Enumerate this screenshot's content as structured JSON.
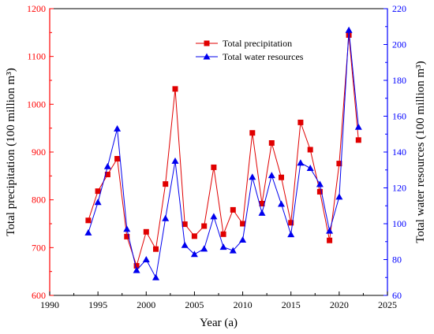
{
  "chart_data": {
    "type": "line",
    "xlabel": "Year (a)",
    "ylabel_left": "Total precipitation (100 million m³)",
    "ylabel_right": "Total water resources (100 million m³)",
    "xlim": [
      1990,
      2025
    ],
    "ylim_left": [
      600,
      1200
    ],
    "ylim_right": [
      60,
      220
    ],
    "x_ticks": [
      "1990",
      "1995",
      "2000",
      "2005",
      "2010",
      "2015",
      "2020",
      "2025"
    ],
    "y_left_ticks": [
      "600",
      "700",
      "800",
      "900",
      "1000",
      "1100",
      "1200"
    ],
    "y_right_ticks": [
      "60",
      "80",
      "100",
      "120",
      "140",
      "160",
      "180",
      "200",
      "220"
    ],
    "legend_position": "top-center",
    "colors": {
      "left_axis": "#ff0000",
      "right_axis": "#0000ff",
      "frame": "#000000"
    },
    "series": [
      {
        "name": "Total precipitation",
        "axis": "left",
        "marker": "square",
        "color": "#e00000",
        "x": [
          1994,
          1995,
          1996,
          1997,
          1998,
          1999,
          2000,
          2001,
          2002,
          2003,
          2004,
          2005,
          2006,
          2007,
          2008,
          2009,
          2010,
          2011,
          2012,
          2013,
          2014,
          2015,
          2016,
          2017,
          2018,
          2019,
          2020,
          2021,
          2022
        ],
        "y": [
          757,
          818,
          853,
          886,
          723,
          662,
          733,
          697,
          833,
          1032,
          749,
          724,
          745,
          868,
          728,
          779,
          750,
          940,
          792,
          919,
          847,
          752,
          962,
          905,
          817,
          715,
          876,
          1145,
          925
        ]
      },
      {
        "name": "Total water resources",
        "axis": "right",
        "marker": "triangle",
        "color": "#0000ee",
        "x": [
          1994,
          1995,
          1996,
          1997,
          1998,
          1999,
          2000,
          2001,
          2002,
          2003,
          2004,
          2005,
          2006,
          2007,
          2008,
          2009,
          2010,
          2011,
          2012,
          2013,
          2014,
          2015,
          2016,
          2017,
          2018,
          2019,
          2020,
          2021,
          2022
        ],
        "y": [
          95,
          112,
          132,
          153,
          97,
          74,
          80,
          70,
          103,
          135,
          88,
          83,
          86,
          104,
          87,
          85,
          91,
          126,
          106,
          127,
          111,
          94,
          134,
          131,
          122,
          96,
          115,
          208,
          154
        ]
      }
    ]
  }
}
